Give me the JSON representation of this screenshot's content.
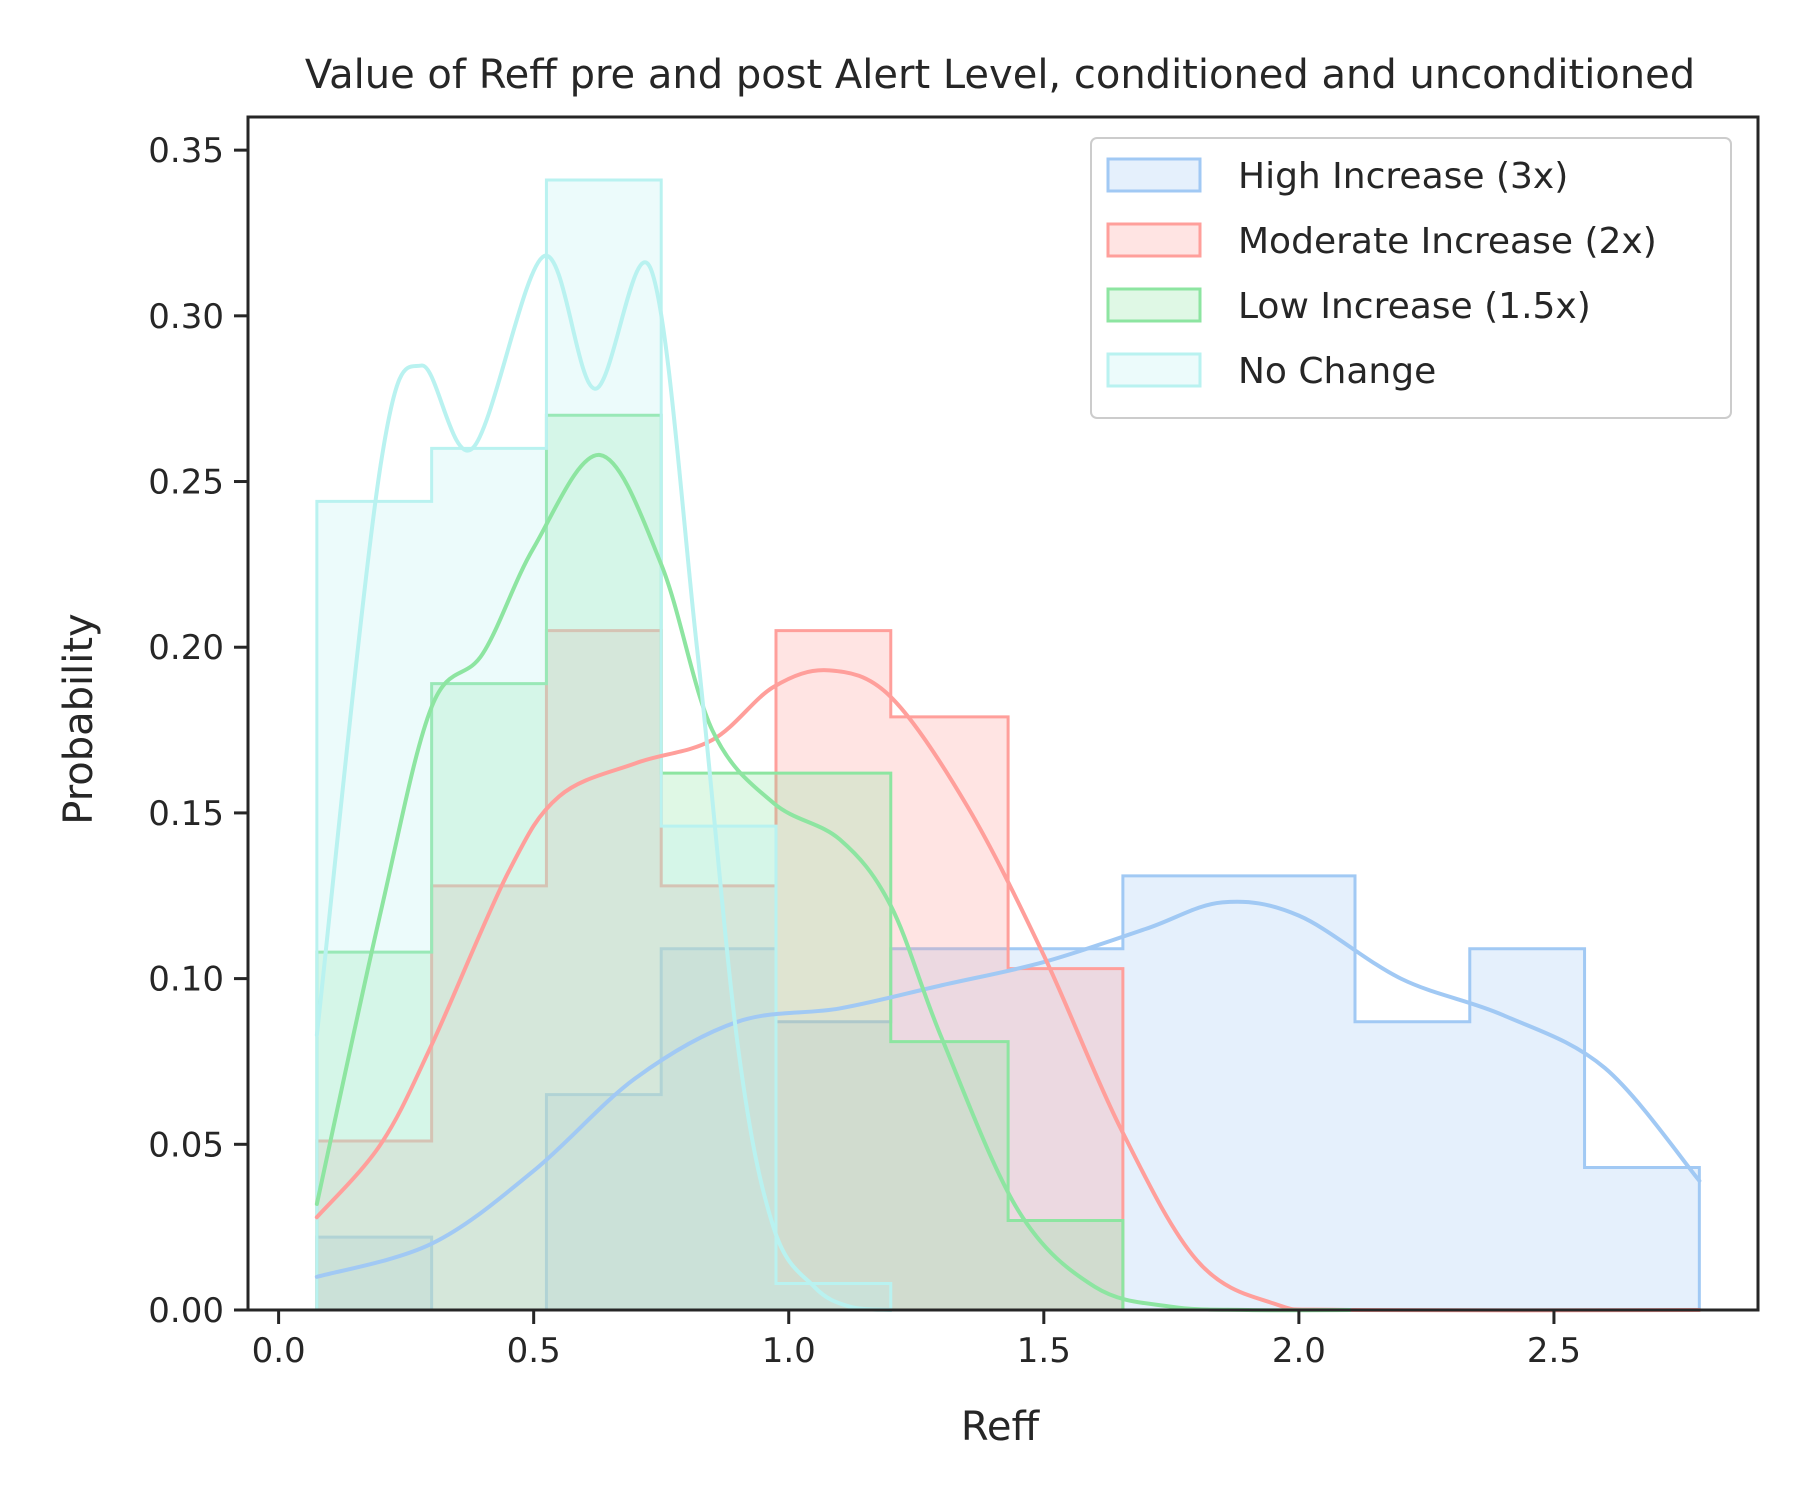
{
  "chart_data": {
    "type": "histogram",
    "title": "Value of Reff pre and post Alert Level, conditioned and unconditioned",
    "xlabel": "Reff",
    "ylabel": "Probability",
    "xlim": [
      -0.06,
      2.9
    ],
    "ylim": [
      0,
      0.36
    ],
    "x_ticks": [
      0.0,
      0.5,
      1.0,
      1.5,
      2.0,
      2.5
    ],
    "x_tick_labels": [
      "0.0",
      "0.5",
      "1.0",
      "1.5",
      "2.0",
      "2.5"
    ],
    "y_ticks": [
      0.0,
      0.05,
      0.1,
      0.15,
      0.2,
      0.25,
      0.3,
      0.35
    ],
    "y_tick_labels": [
      "0.00",
      "0.05",
      "0.10",
      "0.15",
      "0.20",
      "0.25",
      "0.30",
      "0.35"
    ],
    "grid": false,
    "legend_position": "top-right",
    "bin_edges": [
      0.075,
      0.3,
      0.525,
      0.75,
      0.975,
      1.2,
      1.43,
      1.655,
      1.88,
      2.11,
      2.335,
      2.56,
      2.785
    ],
    "series": [
      {
        "name": "High Increase (3x)",
        "color": "#a1c9f4",
        "values": [
          0.022,
          0,
          0.065,
          0.109,
          0.087,
          0.109,
          0.109,
          0.131,
          0.131,
          0.087,
          0.109,
          0.043
        ],
        "kde_x": [
          0.075,
          0.3,
          0.5,
          0.7,
          0.9,
          1.1,
          1.3,
          1.5,
          1.7,
          1.85,
          2.0,
          2.2,
          2.4,
          2.6,
          2.785
        ],
        "kde_y": [
          0.01,
          0.02,
          0.042,
          0.07,
          0.087,
          0.091,
          0.098,
          0.105,
          0.115,
          0.123,
          0.119,
          0.1,
          0.089,
          0.073,
          0.039
        ]
      },
      {
        "name": "Moderate Increase (2x)",
        "color": "#ff9f9b",
        "values": [
          0.051,
          0.128,
          0.205,
          0.128,
          0.205,
          0.179,
          0.103
        ],
        "kde_x": [
          0.075,
          0.2,
          0.3,
          0.45,
          0.55,
          0.7,
          0.85,
          0.97,
          1.08,
          1.2,
          1.35,
          1.5,
          1.65,
          1.8,
          1.95,
          2.1,
          2.785
        ],
        "kde_y": [
          0.028,
          0.05,
          0.08,
          0.132,
          0.155,
          0.165,
          0.172,
          0.188,
          0.193,
          0.185,
          0.152,
          0.107,
          0.055,
          0.015,
          0.002,
          0.0,
          0.0
        ]
      },
      {
        "name": "Low Increase (1.5x)",
        "color": "#8de5a1",
        "values": [
          0.108,
          0.189,
          0.27,
          0.162,
          0.162,
          0.081,
          0.027
        ],
        "kde_x": [
          0.075,
          0.2,
          0.3,
          0.4,
          0.5,
          0.63,
          0.75,
          0.85,
          0.97,
          1.1,
          1.2,
          1.3,
          1.45,
          1.6,
          1.75,
          1.9,
          2.1
        ],
        "kde_y": [
          0.032,
          0.12,
          0.182,
          0.198,
          0.23,
          0.258,
          0.225,
          0.175,
          0.153,
          0.142,
          0.122,
          0.082,
          0.03,
          0.007,
          0.001,
          0.0,
          0.0
        ]
      },
      {
        "name": "No Change",
        "color": "#b9f2f0",
        "values": [
          0.244,
          0.26,
          0.341,
          0.146,
          0.008
        ],
        "kde_x": [
          0.075,
          0.2,
          0.28,
          0.38,
          0.52,
          0.62,
          0.73,
          0.82,
          0.9,
          0.97,
          1.05,
          1.12,
          1.2
        ],
        "kde_y": [
          0.083,
          0.255,
          0.285,
          0.26,
          0.318,
          0.278,
          0.314,
          0.2,
          0.08,
          0.025,
          0.007,
          0.001,
          0.0
        ]
      }
    ]
  }
}
